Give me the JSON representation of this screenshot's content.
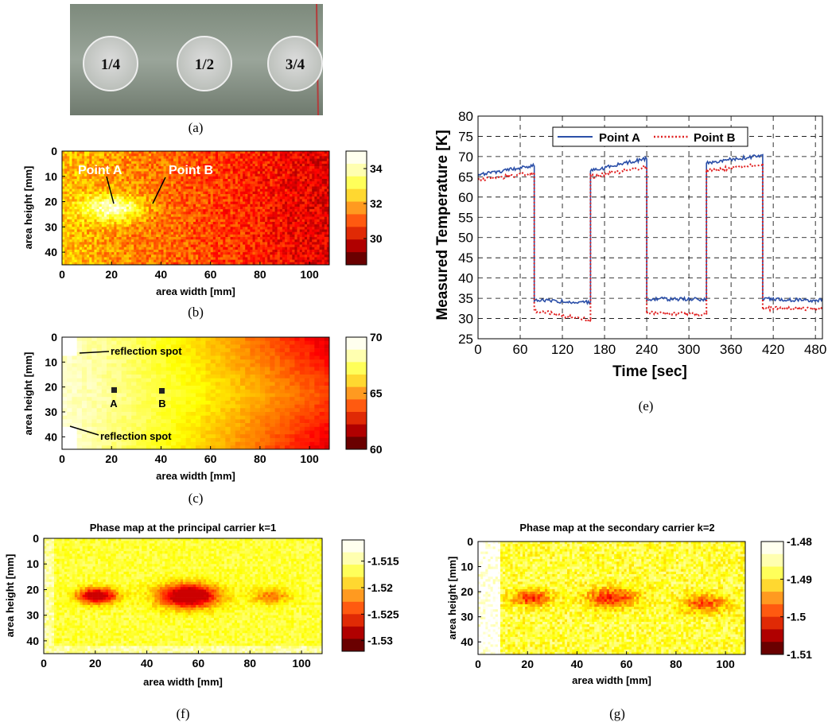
{
  "captions": {
    "a": "(a)",
    "b": "(b)",
    "c": "(c)",
    "e": "(e)",
    "f": "(f)",
    "g": "(g)"
  },
  "photo": {
    "labels": [
      "1/4",
      "1/2",
      "3/4"
    ]
  },
  "colors": {
    "line_a": "#2b4fa8",
    "line_b": "#e02020",
    "colormap": "hot"
  },
  "chart_data": [
    {
      "id": "b",
      "type": "heatmap",
      "xlabel": "area width [mm]",
      "ylabel": "area height [mm]",
      "xticks": [
        "0",
        "20",
        "40",
        "60",
        "80",
        "100"
      ],
      "yticks": [
        "0",
        "10",
        "20",
        "30",
        "40"
      ],
      "xlim": [
        0,
        108
      ],
      "ylim": [
        0,
        45
      ],
      "colorbar": {
        "ticks": [
          "34",
          "32",
          "30"
        ],
        "range": [
          28.5,
          35
        ]
      },
      "annotations": [
        "Point A",
        "Point B"
      ]
    },
    {
      "id": "c",
      "type": "heatmap",
      "xlabel": "area width [mm]",
      "ylabel": "area height [mm]",
      "xticks": [
        "0",
        "20",
        "40",
        "60",
        "80",
        "100"
      ],
      "yticks": [
        "0",
        "10",
        "20",
        "30",
        "40"
      ],
      "xlim": [
        0,
        108
      ],
      "ylim": [
        0,
        45
      ],
      "colorbar": {
        "ticks": [
          "70",
          "65",
          "60"
        ],
        "range": [
          60,
          70
        ]
      },
      "annotations": [
        "reflection spot",
        "reflection spot",
        "A",
        "B"
      ]
    },
    {
      "id": "e",
      "type": "line",
      "xlabel": "Time [sec]",
      "ylabel": "Measured Temperature [K]",
      "xticks": [
        "0",
        "60",
        "120",
        "180",
        "240",
        "300",
        "360",
        "420",
        "480"
      ],
      "yticks": [
        "25",
        "30",
        "35",
        "40",
        "45",
        "50",
        "55",
        "60",
        "65",
        "70",
        "75",
        "80"
      ],
      "xlim": [
        0,
        490
      ],
      "ylim": [
        25,
        80
      ],
      "grid": true,
      "legend": "top-center",
      "series": [
        {
          "name": "Point A",
          "x": [
            0,
            80,
            80,
            160,
            160,
            240,
            240,
            325,
            325,
            405,
            405,
            490
          ],
          "y": [
            65.5,
            67.8,
            34.5,
            34,
            66.5,
            69.5,
            34.8,
            34.8,
            68.5,
            70.3,
            34.8,
            34.5
          ]
        },
        {
          "name": "Point B",
          "x": [
            0,
            80,
            80,
            160,
            160,
            240,
            240,
            325,
            325,
            405,
            405,
            490
          ],
          "y": [
            64.2,
            66,
            32,
            29.5,
            65,
            67.5,
            31.5,
            31,
            66.5,
            68.2,
            32.5,
            32.5
          ]
        }
      ]
    },
    {
      "id": "f",
      "type": "heatmap",
      "title": "Phase map at the principal carrier k=1",
      "xlabel": "area width [mm]",
      "ylabel": "area height [mm]",
      "xticks": [
        "0",
        "20",
        "40",
        "60",
        "80",
        "100"
      ],
      "yticks": [
        "0",
        "10",
        "20",
        "30",
        "40"
      ],
      "xlim": [
        0,
        108
      ],
      "ylim": [
        0,
        45
      ],
      "colorbar": {
        "ticks": [
          "-1.515",
          "-1.52",
          "-1.525",
          "-1.53"
        ],
        "range": [
          -1.532,
          -1.511
        ]
      }
    },
    {
      "id": "g",
      "type": "heatmap",
      "title": "Phase map at the secondary carrier k=2",
      "xlabel": "area width [mm]",
      "ylabel": "area height [mm]",
      "xticks": [
        "0",
        "20",
        "40",
        "60",
        "80",
        "100"
      ],
      "yticks": [
        "0",
        "10",
        "20",
        "30",
        "40"
      ],
      "xlim": [
        0,
        108
      ],
      "ylim": [
        0,
        45
      ],
      "colorbar": {
        "ticks": [
          "-1.48",
          "-1.49",
          "-1.5",
          "-1.51"
        ],
        "range": [
          -1.51,
          -1.48
        ]
      }
    }
  ]
}
